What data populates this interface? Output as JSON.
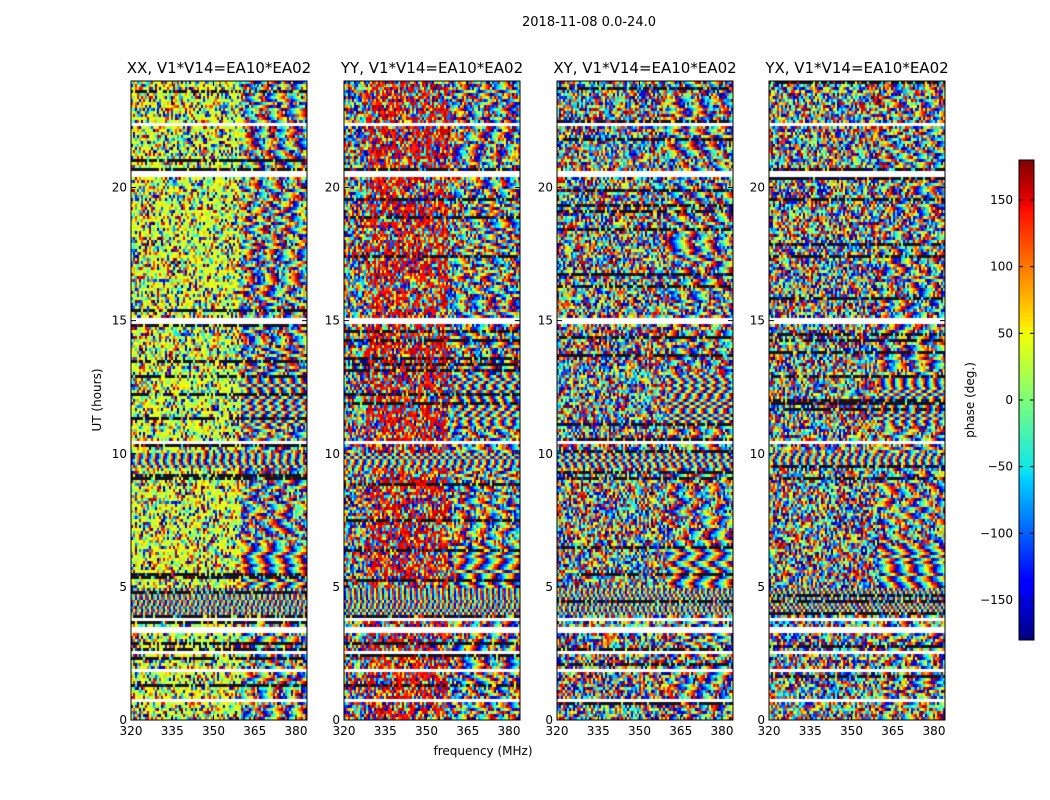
{
  "figure": {
    "suptitle": "2018-11-08 0.0-24.0"
  },
  "chart_data": {
    "type": "heatmap",
    "panels": [
      {
        "title": "XX, V1*V14=EA10*EA02",
        "polarization": "XX"
      },
      {
        "title": "YY, V1*V14=EA10*EA02",
        "polarization": "YY"
      },
      {
        "title": "XY, V1*V14=EA10*EA02",
        "polarization": "XY"
      },
      {
        "title": "YX, V1*V14=EA10*EA02",
        "polarization": "YX"
      }
    ],
    "xlabel": "frequency (MHz)",
    "ylabel": "UT (hours)",
    "xlim": [
      320,
      384
    ],
    "ylim": [
      0,
      24
    ],
    "xticks": [
      320,
      335,
      350,
      365,
      380
    ],
    "yticks": [
      0,
      5,
      10,
      15,
      20
    ],
    "colorbar": {
      "label": "phase (deg.)",
      "range": [
        -180,
        180
      ],
      "ticks": [
        -150,
        -100,
        -50,
        0,
        50,
        100,
        150
      ],
      "tick_labels": [
        "−150",
        "−100",
        "−50",
        "0",
        "50",
        "100",
        "150"
      ],
      "colormap": "jet"
    },
    "flagged_gaps_hours": [
      [
        0.72,
        0.82
      ],
      [
        1.8,
        1.9
      ],
      [
        2.45,
        2.55
      ],
      [
        3.3,
        3.45
      ],
      [
        3.72,
        3.86
      ],
      [
        10.35,
        10.5
      ],
      [
        14.9,
        15.1
      ],
      [
        20.45,
        20.6
      ],
      [
        22.3,
        22.45
      ]
    ],
    "phase_wrap_bands": [
      {
        "from": 3.9,
        "to": 5.0,
        "fringe_period_mhz": 2.0
      },
      {
        "from": 5.0,
        "to": 6.5,
        "fringe_period_mhz": 7.0
      },
      {
        "from": 9.5,
        "to": 10.0,
        "fringe_period_mhz": 3.0
      },
      {
        "from": 11.0,
        "to": 13.0,
        "fringe_period_mhz": 4.0
      }
    ]
  }
}
